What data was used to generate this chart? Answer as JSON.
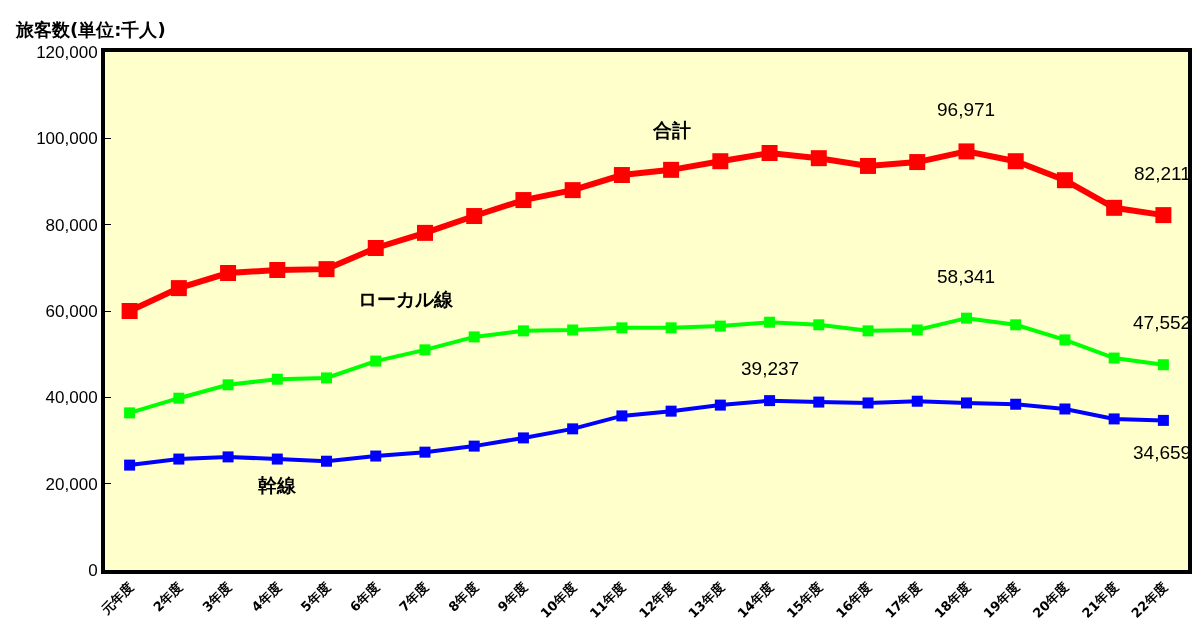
{
  "chart_data": {
    "type": "line",
    "ylabel": "旅客数(単位:千人)",
    "categories": [
      "元年度",
      "2年度",
      "3年度",
      "4年度",
      "5年度",
      "6年度",
      "7年度",
      "8年度",
      "9年度",
      "10年度",
      "11年度",
      "12年度",
      "13年度",
      "14年度",
      "15年度",
      "16年度",
      "17年度",
      "18年度",
      "19年度",
      "20年度",
      "21年度",
      "22年度"
    ],
    "series": [
      {
        "name": "合計",
        "color": "#ff0000",
        "values": [
          60000,
          65300,
          68800,
          69500,
          69700,
          74600,
          78100,
          82000,
          85700,
          88000,
          91500,
          92700,
          94700,
          96600,
          95400,
          93600,
          94500,
          96971,
          94700,
          90300,
          83900,
          82211
        ],
        "value_labels": [
          null,
          null,
          null,
          null,
          null,
          null,
          null,
          null,
          null,
          null,
          null,
          null,
          null,
          null,
          null,
          null,
          null,
          "96,971",
          null,
          null,
          null,
          "82,211"
        ]
      },
      {
        "name": "ローカル線",
        "color": "#00ff00",
        "values": [
          36400,
          39800,
          42900,
          44200,
          44500,
          48400,
          51000,
          54000,
          55400,
          55600,
          56100,
          56100,
          56500,
          57400,
          56800,
          55400,
          55600,
          58341,
          56800,
          53300,
          49100,
          47552
        ],
        "value_labels": [
          null,
          null,
          null,
          null,
          null,
          null,
          null,
          null,
          null,
          null,
          null,
          null,
          null,
          null,
          null,
          null,
          null,
          "58,341",
          null,
          null,
          null,
          "47,552"
        ]
      },
      {
        "name": "幹線",
        "color": "#0000ff",
        "values": [
          24300,
          25700,
          26200,
          25700,
          25200,
          26400,
          27300,
          28700,
          30600,
          32700,
          35700,
          36800,
          38200,
          39237,
          38900,
          38700,
          39100,
          38700,
          38400,
          37300,
          35000,
          34659
        ],
        "value_labels": [
          null,
          null,
          null,
          null,
          null,
          null,
          null,
          null,
          null,
          null,
          null,
          null,
          null,
          "39,237",
          null,
          null,
          null,
          null,
          null,
          null,
          null,
          "34,659"
        ]
      }
    ],
    "ylim": [
      0,
      120000
    ],
    "yticks": [
      0,
      {
        "value": 20000,
        "label": "20,000"
      },
      {
        "value": 40000,
        "label": "40,000"
      },
      {
        "value": 60000,
        "label": "60,000"
      },
      {
        "value": 80000,
        "label": "80,000"
      },
      {
        "value": 100000,
        "label": "100,000"
      },
      {
        "value": 120000,
        "label": "120,000"
      }
    ],
    "grid": false,
    "legend": false,
    "marker": "square",
    "line_style": "solid"
  }
}
